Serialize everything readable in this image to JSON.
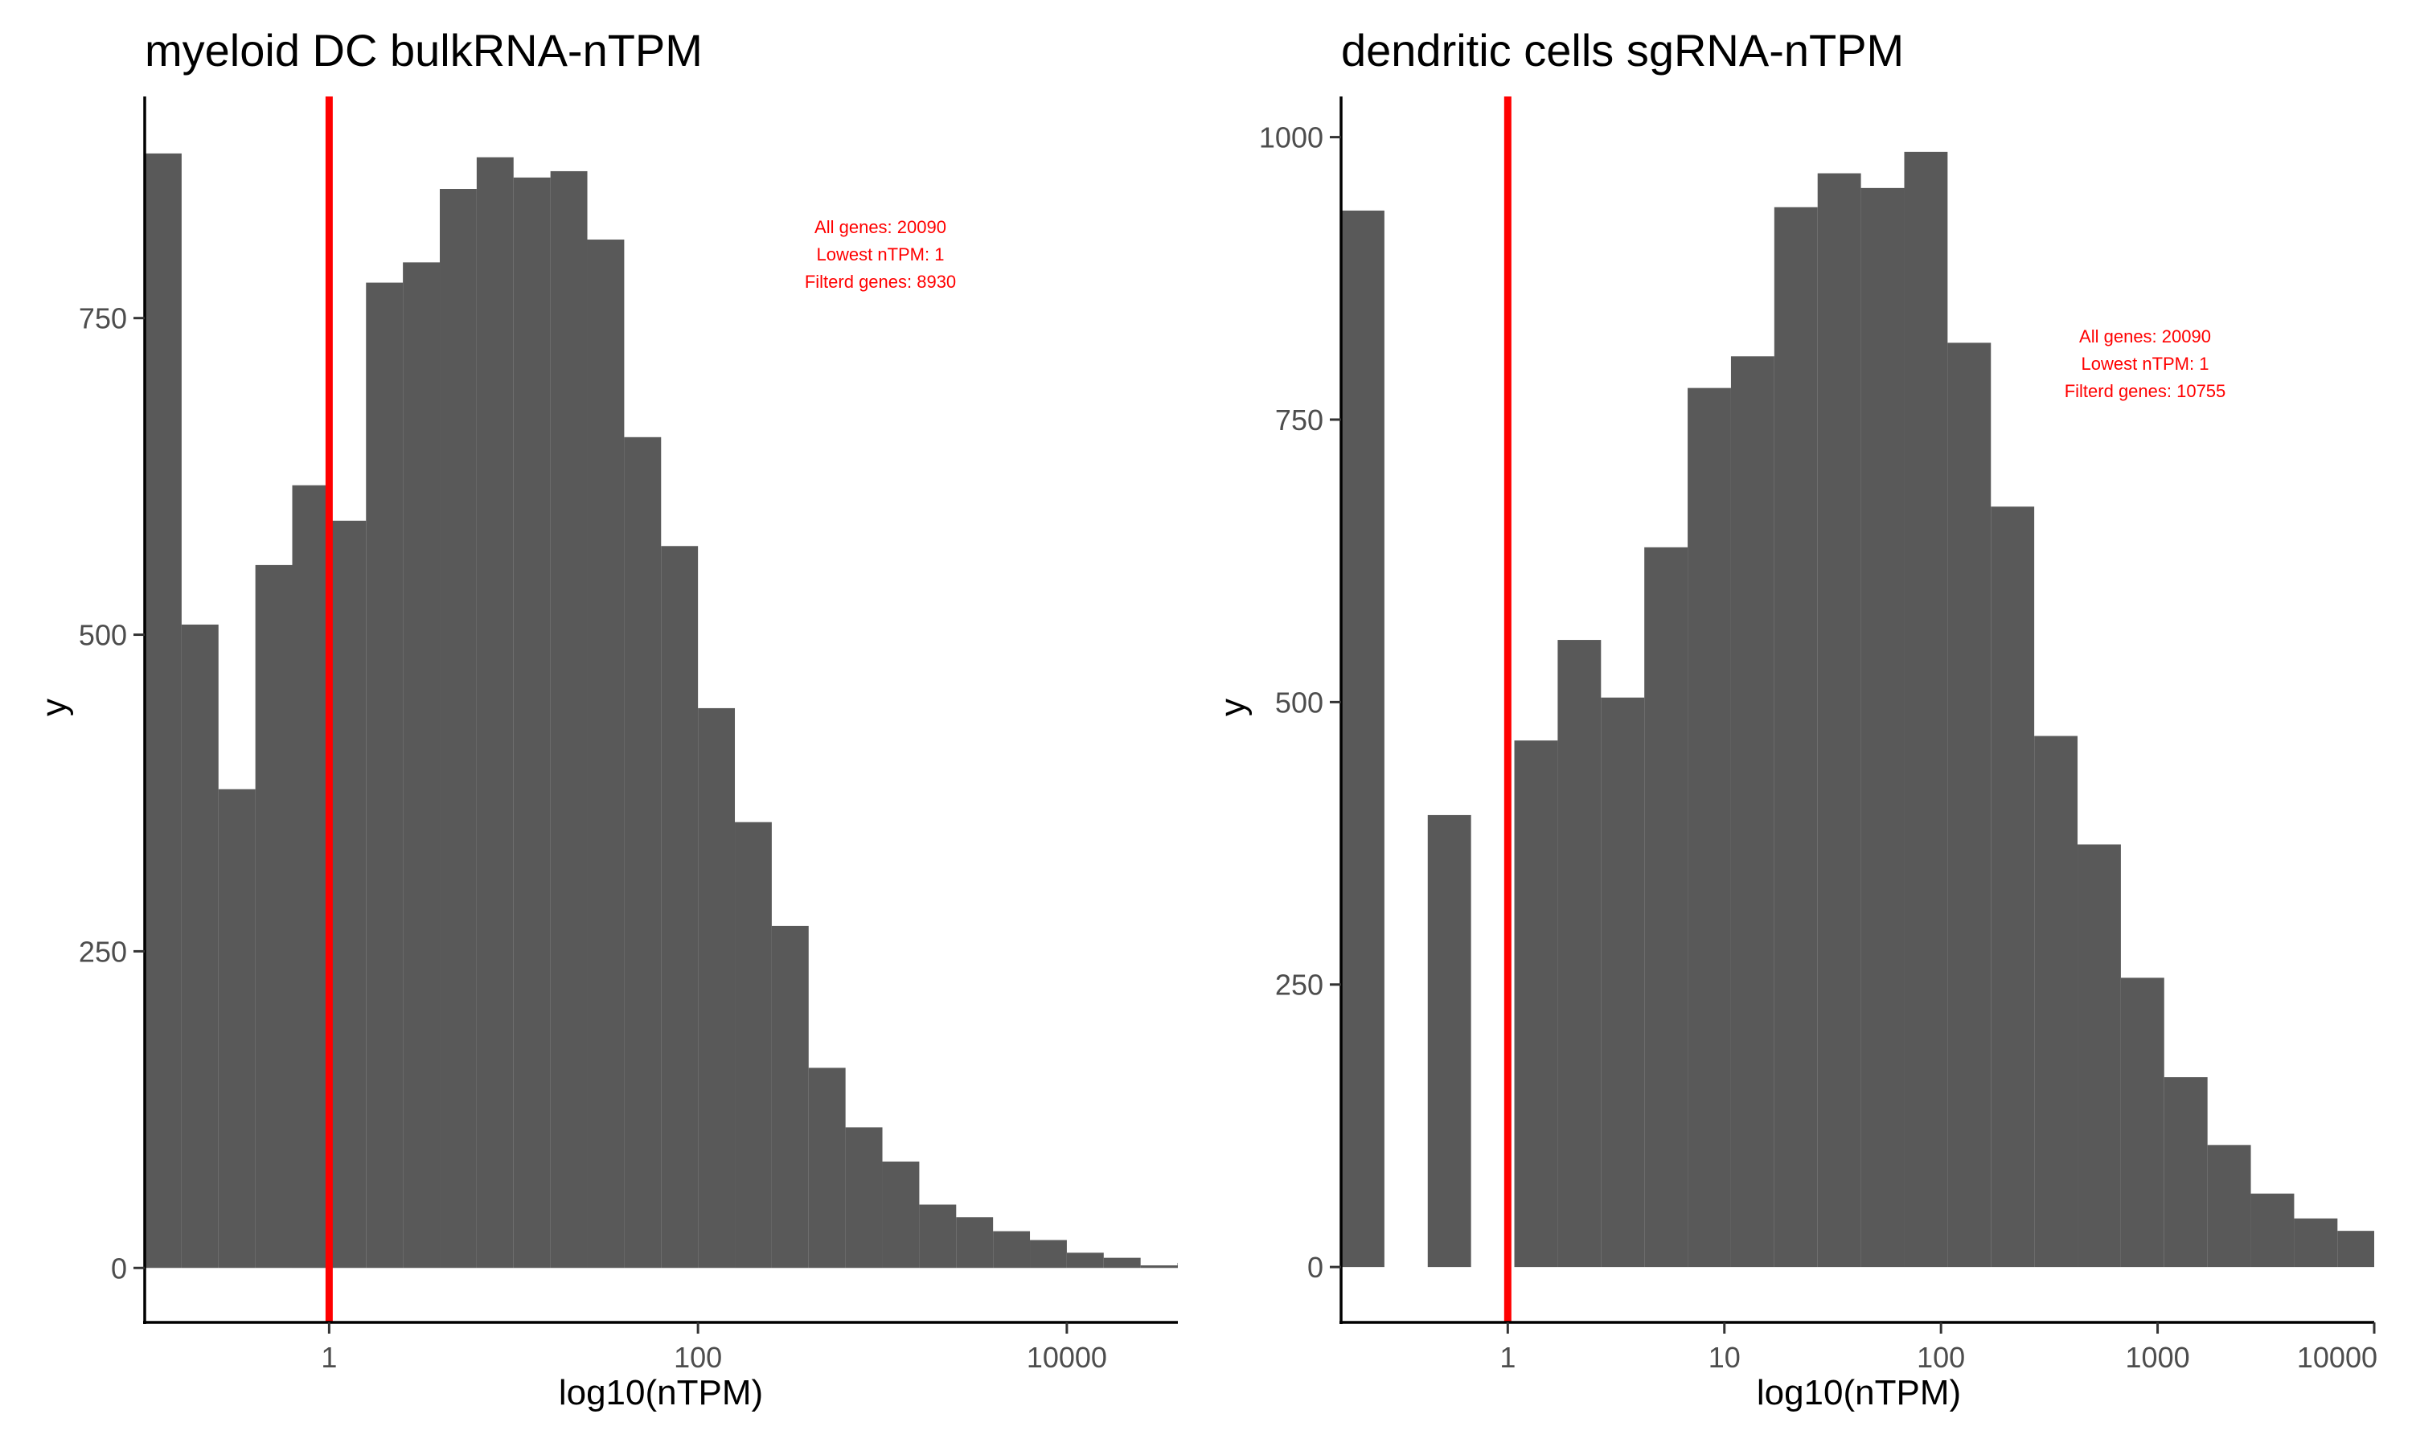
{
  "panels": [
    {
      "title": "myeloid DC bulkRNA-nTPM",
      "xlabel": "log10(nTPM)",
      "ylabel": "y",
      "annotation": [
        "All genes: 20090",
        "Lowest nTPM: 1",
        "Filterd genes: 8930"
      ]
    },
    {
      "title": "dendritic cells sgRNA-nTPM",
      "xlabel": "log10(nTPM)",
      "ylabel": "y",
      "annotation": [
        "All genes: 20090",
        "Lowest nTPM: 1",
        "Filterd genes: 10755"
      ]
    }
  ],
  "colors": {
    "bar": "#595959",
    "cutoff_line": "#ff0000",
    "annotation": "#ff0000",
    "axis": "#000000",
    "tick_label": "#4d4d4d"
  },
  "chart_data": [
    {
      "type": "bar",
      "title": "myeloid DC bulkRNA-nTPM",
      "xlabel": "log10(nTPM)",
      "ylabel": "y",
      "x_scale": "log10",
      "x_ticks": [
        1,
        100,
        10000
      ],
      "x_tick_labels": [
        "1",
        "100",
        "10000"
      ],
      "xlim": [
        0.1,
        40000
      ],
      "y_ticks": [
        0,
        250,
        500,
        750
      ],
      "y_tick_labels": [
        "0",
        "250",
        "500",
        "750"
      ],
      "ylim": [
        -43,
        925
      ],
      "cutoff_x": 1,
      "annotation_x": 250,
      "annotation_y": 800,
      "bin_start": 0.1,
      "bin_width_log10": 0.2,
      "values": [
        880,
        508,
        378,
        555,
        618,
        590,
        778,
        794,
        852,
        877,
        861,
        866,
        812,
        656,
        570,
        442,
        352,
        270,
        158,
        111,
        84,
        50,
        40,
        29,
        22,
        12,
        8,
        2,
        4,
        1
      ],
      "grid": false
    },
    {
      "type": "bar",
      "title": "dendritic cells sgRNA-nTPM",
      "xlabel": "log10(nTPM)",
      "ylabel": "y",
      "x_scale": "log10",
      "x_ticks": [
        1,
        10,
        100,
        1000,
        10000
      ],
      "x_tick_labels": [
        "1",
        "10",
        "100",
        "1000",
        "10000"
      ],
      "xlim": [
        0.17,
        10000
      ],
      "y_ticks": [
        0,
        250,
        500,
        750,
        1000
      ],
      "y_tick_labels": [
        "0",
        "250",
        "500",
        "750",
        "1000"
      ],
      "ylim": [
        -49,
        1036
      ],
      "cutoff_x": 1,
      "annotation_x": 1500,
      "annotation_y": 800,
      "bin_start": 0.17,
      "bin_width_log10": 0.2,
      "values": [
        935,
        0,
        400,
        0,
        466,
        555,
        504,
        637,
        778,
        806,
        938,
        968,
        955,
        987,
        818,
        673,
        470,
        374,
        256,
        168,
        108,
        65,
        43,
        32,
        22,
        24,
        30,
        27,
        14,
        8
      ],
      "grid": false
    }
  ]
}
